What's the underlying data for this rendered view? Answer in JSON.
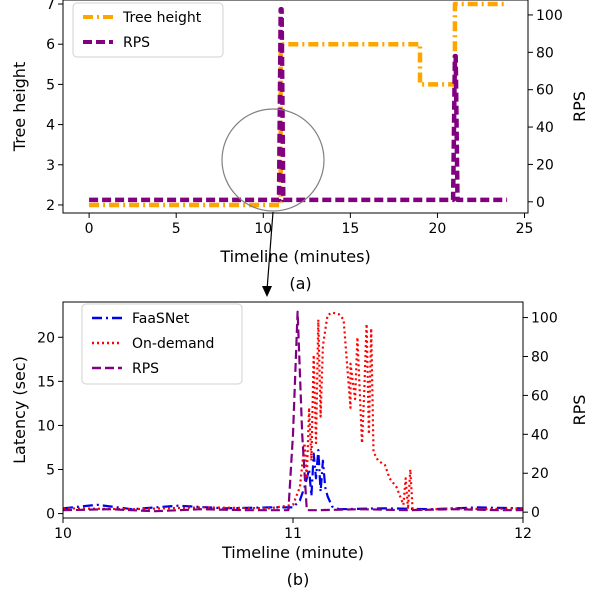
{
  "chart_data": [
    {
      "type": "line",
      "panel_label": "(a)",
      "xlabel": "Timeline (minutes)",
      "ylabel": "Tree height",
      "y2label": "RPS",
      "xlim": [
        -1.5,
        25.2
      ],
      "ylim": [
        1.8,
        7.1
      ],
      "y2lim": [
        -6,
        108
      ],
      "xticks": [
        0,
        5,
        10,
        15,
        20,
        25
      ],
      "yticks": [
        2,
        3,
        4,
        5,
        6,
        7
      ],
      "y2ticks": [
        0,
        20,
        40,
        60,
        80,
        100
      ],
      "grid": false,
      "legend_position": "top-left",
      "series": [
        {
          "name": "Tree height",
          "axis": "left",
          "color": "#FFA500",
          "style": "dashdot",
          "x": [
            0,
            11.0,
            11.0,
            19.0,
            19.0,
            21.0,
            21.0,
            24.0
          ],
          "y": [
            2,
            2,
            6,
            6,
            5,
            5,
            7,
            7
          ]
        },
        {
          "name": "RPS",
          "axis": "right",
          "color": "#800080",
          "style": "dashed",
          "x": [
            0,
            10.9,
            11.0,
            11.05,
            11.15,
            20.9,
            21.0,
            21.05,
            21.15,
            24.0
          ],
          "y": [
            1,
            1,
            103,
            103,
            1,
            1,
            78,
            78,
            1,
            1
          ]
        }
      ]
    },
    {
      "type": "line",
      "panel_label": "(b)",
      "xlabel": "Timeline (minute)",
      "ylabel": "Latency (sec)",
      "y2label": "RPS",
      "xlim": [
        10,
        12
      ],
      "ylim": [
        -0.5,
        24
      ],
      "y2lim": [
        -3,
        108
      ],
      "xticks": [
        10,
        11,
        12
      ],
      "yticks": [
        0,
        5,
        10,
        15,
        20
      ],
      "y2ticks": [
        0,
        20,
        40,
        60,
        80,
        100
      ],
      "grid": false,
      "legend_position": "top-left",
      "series": [
        {
          "name": "FaaSNet",
          "axis": "left",
          "color": "#0000EE",
          "style": "dashdot",
          "x": [
            10,
            10.15,
            10.3,
            10.5,
            10.7,
            10.9,
            11.0,
            11.03,
            11.05,
            11.07,
            11.08,
            11.09,
            11.1,
            11.11,
            11.12,
            11.13,
            11.14,
            11.15,
            11.17,
            11.2,
            11.4,
            11.6,
            11.8,
            12.0
          ],
          "y": [
            0.6,
            1.0,
            0.5,
            0.9,
            0.6,
            0.7,
            0.7,
            1.5,
            3.0,
            5.0,
            2.0,
            6.8,
            4.0,
            7.2,
            2.5,
            6.0,
            3.0,
            2.0,
            0.8,
            0.5,
            0.6,
            0.5,
            0.7,
            0.6
          ]
        },
        {
          "name": "On-demand",
          "axis": "left",
          "color": "#FF0000",
          "style": "dotted",
          "x": [
            10,
            10.3,
            10.6,
            10.9,
            11.0,
            11.03,
            11.05,
            11.06,
            11.07,
            11.08,
            11.09,
            11.1,
            11.11,
            11.12,
            11.13,
            11.15,
            11.17,
            11.2,
            11.22,
            11.25,
            11.25,
            11.27,
            11.28,
            11.3,
            11.31,
            11.32,
            11.33,
            11.34,
            11.35,
            11.36,
            11.37,
            11.4,
            11.42,
            11.45,
            11.48,
            11.49,
            11.5,
            11.51,
            11.52,
            11.55,
            11.7,
            11.85,
            12.0
          ],
          "y": [
            0.6,
            0.5,
            0.7,
            0.6,
            1.0,
            3.0,
            8.0,
            4.0,
            12.0,
            6.0,
            18.0,
            8.0,
            22.0,
            11.0,
            19.0,
            22.5,
            22.8,
            22.6,
            22.0,
            12.0,
            17.0,
            13.0,
            20.0,
            8.0,
            14.0,
            21.5,
            9.0,
            21.0,
            7.0,
            6.5,
            6.0,
            5.5,
            4.0,
            3.0,
            1.0,
            4.0,
            0.5,
            5.0,
            0.5,
            0.4,
            0.6,
            0.5,
            0.6
          ]
        },
        {
          "name": "RPS",
          "axis": "right",
          "color": "#800080",
          "style": "dashed",
          "x": [
            10,
            10.2,
            10.4,
            10.6,
            10.8,
            10.98,
            11.0,
            11.02,
            11.04,
            11.06,
            11.1,
            11.3,
            11.5,
            11.7,
            11.9,
            12.0
          ],
          "y": [
            1,
            1.5,
            0.5,
            1.5,
            1,
            1,
            40,
            103,
            40,
            1,
            1,
            1.5,
            1,
            1.5,
            1,
            1
          ]
        }
      ]
    }
  ]
}
